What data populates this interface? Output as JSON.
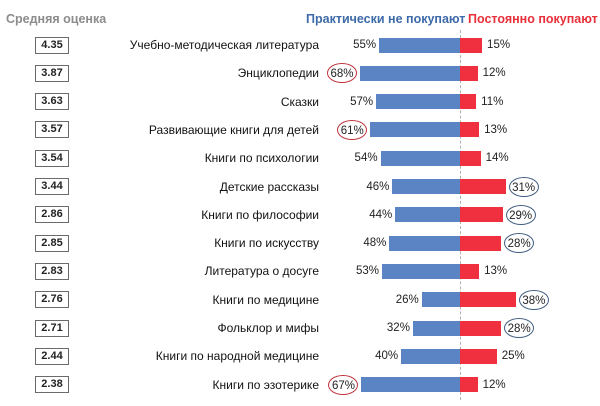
{
  "headers": {
    "average": "Средняя оценка",
    "never": "Практически не покупают",
    "always": "Постоянно покупают"
  },
  "colors": {
    "never": "#5b84c4",
    "always": "#f0303e",
    "circle_red": "#c0303a",
    "circle_blue": "#3e5c80"
  },
  "chart_data": {
    "type": "bar",
    "orientation": "diverging-horizontal",
    "units": "%",
    "categories": [
      "Учебно-методическая литература",
      "Энциклопедии",
      "Сказки",
      "Развивающие книги для детей",
      "Книги по психологии",
      "Детские рассказы",
      "Книги по философии",
      "Книги по искусству",
      "Литература о досуге",
      "Книги по медицине",
      "Фольклор и мифы",
      "Книги по народной медицине",
      "Книги по эзотерике"
    ],
    "average_scores": [
      "4.35",
      "3.87",
      "3.63",
      "3.57",
      "3.54",
      "3.44",
      "2.86",
      "2.85",
      "2.83",
      "2.76",
      "2.71",
      "2.44",
      "2.38"
    ],
    "series": [
      {
        "name": "Практически не покупают",
        "values": [
          55,
          68,
          57,
          61,
          54,
          46,
          44,
          48,
          53,
          26,
          32,
          40,
          67
        ],
        "highlighted": [
          false,
          true,
          false,
          true,
          false,
          false,
          false,
          false,
          false,
          false,
          false,
          false,
          true
        ]
      },
      {
        "name": "Постоянно покупают",
        "values": [
          15,
          12,
          11,
          13,
          14,
          31,
          29,
          28,
          13,
          38,
          28,
          25,
          12
        ],
        "highlighted": [
          false,
          false,
          false,
          false,
          false,
          true,
          true,
          true,
          false,
          true,
          true,
          false,
          false
        ]
      }
    ]
  }
}
